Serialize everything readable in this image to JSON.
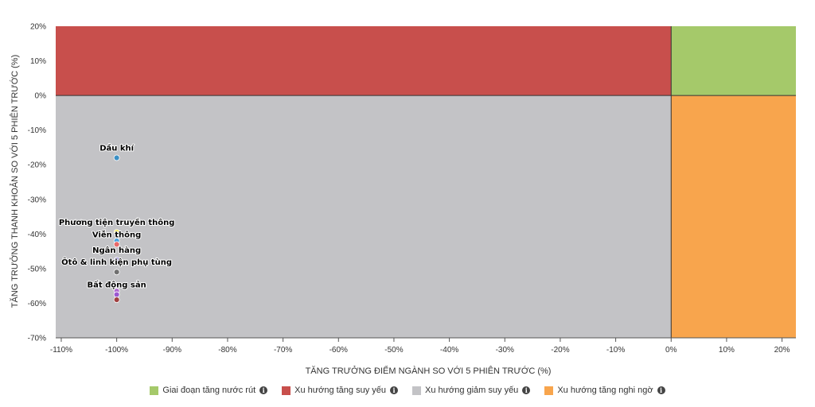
{
  "chart_data": {
    "type": "scatter",
    "xlabel": "TĂNG TRƯỞNG ĐIỂM NGÀNH SO VỚI 5 PHIÊN TRƯỚC (%)",
    "ylabel": "TĂNG TRƯỞNG THANH KHOẢN SO VỚI 5 PHIÊN TRƯỚC (%)",
    "xlim": [
      -111,
      22.5
    ],
    "ylim": [
      -70,
      20
    ],
    "x_ticks": [
      -110,
      -100,
      -90,
      -80,
      -70,
      -60,
      -50,
      -40,
      -30,
      -20,
      -10,
      0,
      10,
      20
    ],
    "x_tick_labels": [
      "-110%",
      "-100%",
      "-90%",
      "-80%",
      "-70%",
      "-60%",
      "-50%",
      "-40%",
      "-30%",
      "-20%",
      "-10%",
      "0%",
      "10%",
      "20%"
    ],
    "y_ticks": [
      20,
      10,
      0,
      -10,
      -20,
      -30,
      -40,
      -50,
      -60,
      -70
    ],
    "y_tick_labels": [
      "20%",
      "10%",
      "0%",
      "-10%",
      "-20%",
      "-30%",
      "-40%",
      "-50%",
      "-60%",
      "-70%"
    ],
    "quadrants": [
      {
        "name": "Giai đoạn tăng nước rút",
        "color": "#a5c96a",
        "x": [
          0,
          22.5
        ],
        "y": [
          0,
          20
        ]
      },
      {
        "name": "Xu hướng tăng suy yếu",
        "color": "#c84f4c",
        "x": [
          -111,
          0
        ],
        "y": [
          0,
          20
        ]
      },
      {
        "name": "Xu hướng giảm suy yếu",
        "color": "#c3c3c6",
        "x": [
          -111,
          0
        ],
        "y": [
          -70,
          0
        ]
      },
      {
        "name": "Xu hướng tăng nghi ngờ",
        "color": "#f8a54d",
        "x": [
          0,
          22.5
        ],
        "y": [
          -70,
          0
        ]
      }
    ],
    "points": [
      {
        "label": "Dầu khí",
        "x": -100,
        "y": -18,
        "color": "#3b8fc4"
      },
      {
        "label": "Phương tiện truyền thông",
        "x": -100,
        "y": -39.5,
        "color": "#f2e53b"
      },
      {
        "label": "",
        "x": -100,
        "y": -42,
        "color": "#4aa3df"
      },
      {
        "label": "Viễn thông",
        "x": -100,
        "y": -43,
        "color": "#e86a6a"
      },
      {
        "label": "Ngân hàng",
        "x": -100,
        "y": -47.5,
        "color": "#6b5bc4"
      },
      {
        "label": "Ôtô & linh kiện phụ tùng",
        "x": -100,
        "y": -51,
        "color": "#707070"
      },
      {
        "label": "",
        "x": -100,
        "y": -56.5,
        "color": "#b06ad0"
      },
      {
        "label": "Bất động sản",
        "x": -100,
        "y": -57.5,
        "color": "#9b59d0"
      },
      {
        "label": "",
        "x": -100,
        "y": -59,
        "color": "#a04040"
      }
    ]
  },
  "legend": {
    "items": [
      {
        "label": "Giai đoạn tăng nước rút",
        "color": "#a5c96a"
      },
      {
        "label": "Xu hướng tăng suy yếu",
        "color": "#c84f4c"
      },
      {
        "label": "Xu hướng giảm suy yếu",
        "color": "#c3c3c6"
      },
      {
        "label": "Xu hướng tăng nghi ngờ",
        "color": "#f8a54d"
      }
    ],
    "info_glyph": "i"
  }
}
